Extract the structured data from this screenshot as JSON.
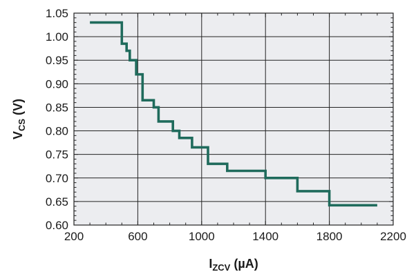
{
  "chart_data": {
    "type": "line",
    "line_style": "step",
    "xlabel": {
      "main": "I",
      "sub": "ZCV",
      "units": " (µA)"
    },
    "ylabel": {
      "main": "V",
      "sub": "CS",
      "units": " (V)"
    },
    "xlim": [
      200,
      2200
    ],
    "ylim": [
      0.6,
      1.05
    ],
    "x_ticks": [
      "200",
      "600",
      "1000",
      "1400",
      "1800",
      "2200"
    ],
    "y_ticks": [
      "0.60",
      "0.65",
      "0.70",
      "0.75",
      "0.80",
      "0.85",
      "0.90",
      "0.95",
      "1.00",
      "1.05"
    ],
    "grid": true,
    "series": [
      {
        "color": "#1f6b5c",
        "points": [
          [
            300,
            1.03
          ],
          [
            500,
            1.03
          ],
          [
            500,
            0.985
          ],
          [
            530,
            0.985
          ],
          [
            530,
            0.97
          ],
          [
            550,
            0.97
          ],
          [
            550,
            0.95
          ],
          [
            590,
            0.95
          ],
          [
            590,
            0.92
          ],
          [
            630,
            0.92
          ],
          [
            630,
            0.865
          ],
          [
            700,
            0.865
          ],
          [
            700,
            0.85
          ],
          [
            730,
            0.85
          ],
          [
            730,
            0.82
          ],
          [
            820,
            0.82
          ],
          [
            820,
            0.8
          ],
          [
            860,
            0.8
          ],
          [
            860,
            0.785
          ],
          [
            940,
            0.785
          ],
          [
            940,
            0.765
          ],
          [
            1040,
            0.765
          ],
          [
            1040,
            0.73
          ],
          [
            1160,
            0.73
          ],
          [
            1160,
            0.715
          ],
          [
            1400,
            0.715
          ],
          [
            1400,
            0.7
          ],
          [
            1600,
            0.7
          ],
          [
            1600,
            0.672
          ],
          [
            1800,
            0.672
          ],
          [
            1800,
            0.642
          ],
          [
            2100,
            0.642
          ]
        ]
      }
    ]
  },
  "colors": {
    "plot_background": "#ecedf0",
    "grid": "#222222",
    "axis": "#222222"
  }
}
